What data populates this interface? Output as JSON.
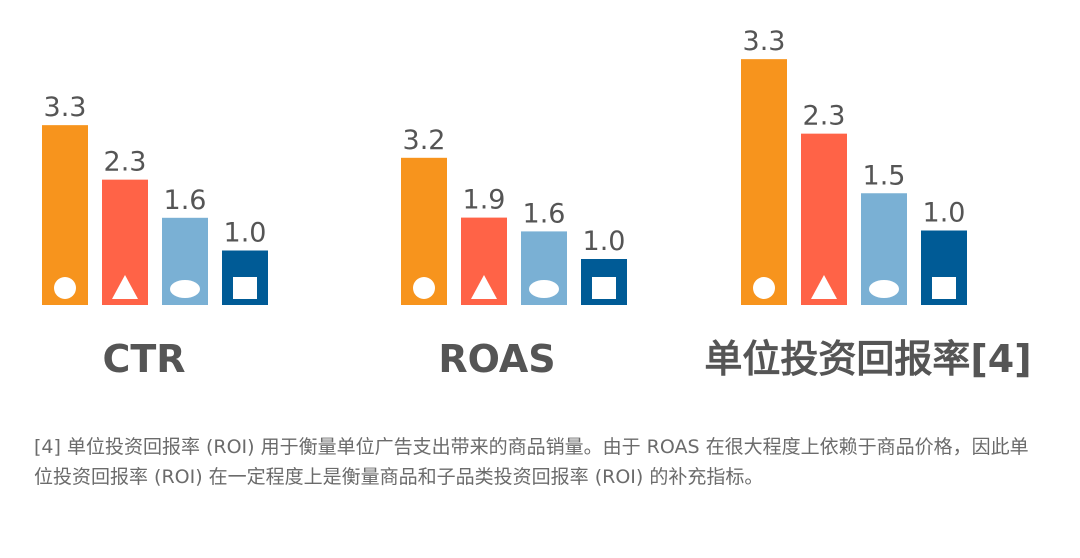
{
  "colors": {
    "orange": "#f7941d",
    "red": "#ff6347",
    "lightblue": "#7ab0d4",
    "darkblue": "#005b96",
    "label": "#555555",
    "text": "#555555",
    "shape": "#ffffff"
  },
  "chart_data": [
    {
      "type": "bar",
      "title": "CTR",
      "categories": [
        "circle",
        "triangle",
        "ellipse",
        "square"
      ],
      "values": [
        3.3,
        2.3,
        1.6,
        1.0
      ],
      "value_labels": [
        "3.3",
        "2.3",
        "1.6",
        "1.0"
      ],
      "legend": "none",
      "grid": false
    },
    {
      "type": "bar",
      "title": "ROAS",
      "categories": [
        "circle",
        "triangle",
        "ellipse",
        "square"
      ],
      "values": [
        3.2,
        1.9,
        1.6,
        1.0
      ],
      "value_labels": [
        "3.2",
        "1.9",
        "1.6",
        "1.0"
      ],
      "legend": "none",
      "grid": false
    },
    {
      "type": "bar",
      "title": "单位投资回报率[4]",
      "categories": [
        "circle",
        "triangle",
        "ellipse",
        "square"
      ],
      "values": [
        3.3,
        2.3,
        1.5,
        1.0
      ],
      "value_labels": [
        "3.3",
        "2.3",
        "1.5",
        "1.0"
      ],
      "legend": "none",
      "grid": false
    }
  ],
  "footnote": "[4] 单位投资回报率 (ROI) 用于衡量单位广告支出带来的商品销量。由于 ROAS 在很大程度上依赖于商品价格，因此单位投资回报率 (ROI) 在一定程度上是衡量商品和子品类投资回报率 (ROI) 的补充指标。"
}
